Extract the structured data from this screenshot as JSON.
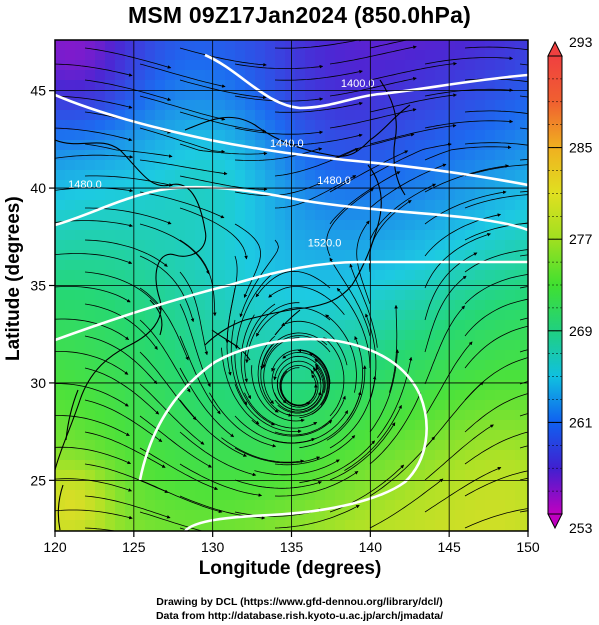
{
  "title": "MSM 09Z17Jan2024 (850.0hPa)",
  "xlabel": "Longitude (degrees)",
  "ylabel": "Latitude  (degrees)",
  "credits": {
    "line1": "Drawing by DCL (https://www.gfd-dennou.org/library/dcl/)",
    "line2": "Data from http://database.rish.kyoto-u.ac.jp/arch/jmadata/"
  },
  "map": {
    "lon_range": [
      120,
      150
    ],
    "lat_range": [
      22.4,
      47.6
    ],
    "lon_ticks": [
      "120",
      "125",
      "130",
      "135",
      "140",
      "145",
      "150"
    ],
    "lat_ticks": [
      "25",
      "30",
      "35",
      "40",
      "45"
    ],
    "cyclone_center": {
      "lon": 135.5,
      "lat": 29.5
    },
    "contours": [
      {
        "label": "1400.0",
        "lon": 139.2,
        "lat": 45.2
      },
      {
        "label": "1440.0",
        "lon": 134.7,
        "lat": 42.1
      },
      {
        "label": "1480.0",
        "lon": 121.9,
        "lat": 40.0
      },
      {
        "label": "1480.0",
        "lon": 137.7,
        "lat": 40.2
      },
      {
        "label": "1520.0",
        "lon": 137.1,
        "lat": 37.0
      }
    ]
  },
  "colorbar": {
    "min": 253,
    "max": 293,
    "labels": [
      "293",
      "285",
      "277",
      "269",
      "261",
      "253"
    ],
    "colors": [
      "#c000c0",
      "#4020d0",
      "#1060f0",
      "#10c0e0",
      "#20d080",
      "#40e030",
      "#a0e020",
      "#e0e020",
      "#f0b020",
      "#f06030",
      "#f04040"
    ]
  }
}
